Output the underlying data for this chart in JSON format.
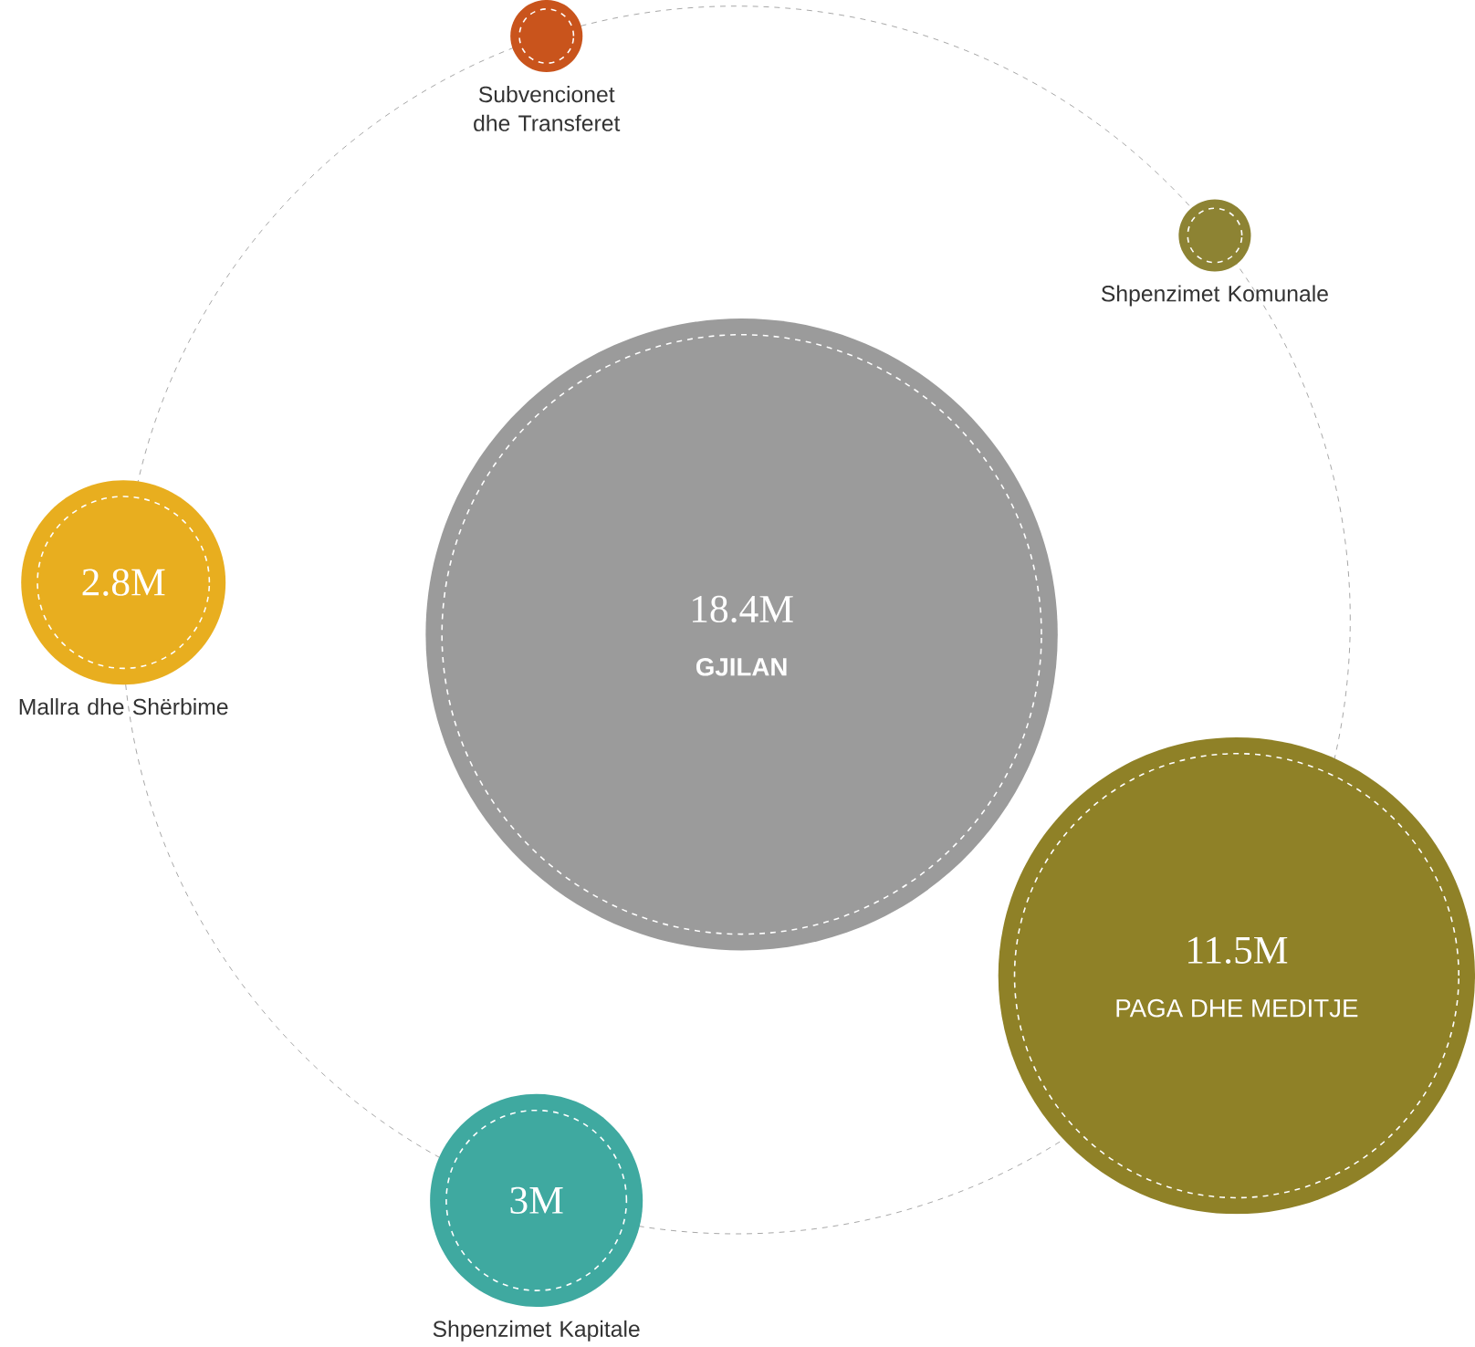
{
  "chart_data": {
    "type": "other",
    "categories": [
      "GJILAN",
      "PAGA DHE MEDITJE",
      "Shpenzimet Kapitale",
      "Mallra dhe Shërbime",
      "Subvencionet dhe Transferet",
      "Shpenzimet Komunale"
    ],
    "values": [
      18.4,
      11.5,
      3,
      2.8,
      null,
      null
    ],
    "value_labels": [
      "18.4M",
      "11.5M",
      "3M",
      "2.8M",
      null,
      null
    ],
    "colors": [
      "#9b9b9b",
      "#8f8127",
      "#3fa9a0",
      "#e8ae1f",
      "#c9541c",
      "#8d8333"
    ]
  }
}
